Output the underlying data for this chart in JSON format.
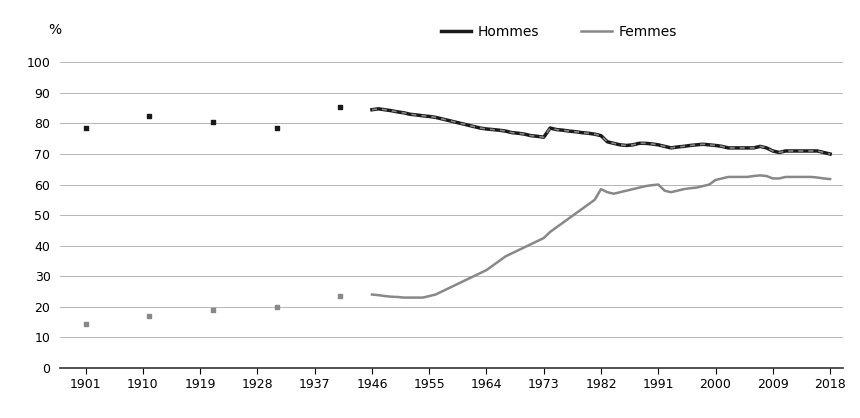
{
  "hommes_scatter_x": [
    1901,
    1911,
    1921,
    1931,
    1941
  ],
  "hommes_scatter_y": [
    78.5,
    82.5,
    80.5,
    78.5,
    85.5
  ],
  "femmes_scatter_x": [
    1901,
    1911,
    1921,
    1931,
    1941
  ],
  "femmes_scatter_y": [
    14.5,
    17.0,
    19.0,
    20.0,
    23.5
  ],
  "hommes_line_x": [
    1946,
    1947,
    1948,
    1949,
    1950,
    1951,
    1952,
    1953,
    1954,
    1955,
    1956,
    1957,
    1958,
    1959,
    1960,
    1961,
    1962,
    1963,
    1964,
    1965,
    1966,
    1967,
    1968,
    1969,
    1970,
    1971,
    1972,
    1973,
    1974,
    1975,
    1976,
    1977,
    1978,
    1979,
    1980,
    1981,
    1982,
    1983,
    1984,
    1985,
    1986,
    1987,
    1988,
    1989,
    1990,
    1991,
    1992,
    1993,
    1994,
    1995,
    1996,
    1997,
    1998,
    1999,
    2000,
    2001,
    2002,
    2003,
    2004,
    2005,
    2006,
    2007,
    2008,
    2009,
    2010,
    2011,
    2012,
    2013,
    2014,
    2015,
    2016,
    2017,
    2018
  ],
  "hommes_line_y": [
    84.5,
    84.8,
    84.5,
    84.2,
    83.8,
    83.5,
    83.0,
    82.8,
    82.5,
    82.3,
    82.0,
    81.5,
    81.0,
    80.5,
    80.0,
    79.5,
    79.0,
    78.5,
    78.2,
    78.0,
    77.8,
    77.5,
    77.0,
    76.8,
    76.5,
    76.0,
    75.8,
    75.5,
    78.5,
    78.0,
    77.8,
    77.5,
    77.3,
    77.0,
    76.8,
    76.5,
    76.0,
    74.0,
    73.5,
    73.0,
    72.8,
    73.0,
    73.5,
    73.5,
    73.3,
    73.0,
    72.5,
    72.0,
    72.3,
    72.5,
    72.8,
    73.0,
    73.2,
    73.0,
    72.8,
    72.5,
    72.0,
    72.0,
    72.0,
    72.0,
    72.0,
    72.5,
    72.0,
    71.0,
    70.5,
    71.0,
    71.0,
    71.0,
    71.0,
    71.0,
    71.0,
    70.5,
    70.0
  ],
  "femmes_line_x": [
    1946,
    1947,
    1948,
    1949,
    1950,
    1951,
    1952,
    1953,
    1954,
    1955,
    1956,
    1957,
    1958,
    1959,
    1960,
    1961,
    1962,
    1963,
    1964,
    1965,
    1966,
    1967,
    1968,
    1969,
    1970,
    1971,
    1972,
    1973,
    1974,
    1975,
    1976,
    1977,
    1978,
    1979,
    1980,
    1981,
    1982,
    1983,
    1984,
    1985,
    1986,
    1987,
    1988,
    1989,
    1990,
    1991,
    1992,
    1993,
    1994,
    1995,
    1996,
    1997,
    1998,
    1999,
    2000,
    2001,
    2002,
    2003,
    2004,
    2005,
    2006,
    2007,
    2008,
    2009,
    2010,
    2011,
    2012,
    2013,
    2014,
    2015,
    2016,
    2017,
    2018
  ],
  "femmes_line_y": [
    24.0,
    23.8,
    23.5,
    23.3,
    23.2,
    23.0,
    23.0,
    23.0,
    23.0,
    23.5,
    24.0,
    25.0,
    26.0,
    27.0,
    28.0,
    29.0,
    30.0,
    31.0,
    32.0,
    33.5,
    35.0,
    36.5,
    37.5,
    38.5,
    39.5,
    40.5,
    41.5,
    42.5,
    44.5,
    46.0,
    47.5,
    49.0,
    50.5,
    52.0,
    53.5,
    55.0,
    58.5,
    57.5,
    57.0,
    57.5,
    58.0,
    58.5,
    59.0,
    59.5,
    59.8,
    60.0,
    58.0,
    57.5,
    58.0,
    58.5,
    58.8,
    59.0,
    59.5,
    60.0,
    61.5,
    62.0,
    62.5,
    62.5,
    62.5,
    62.5,
    62.8,
    63.0,
    62.8,
    62.0,
    62.0,
    62.5,
    62.5,
    62.5,
    62.5,
    62.5,
    62.3,
    62.0,
    61.8
  ],
  "hommes_color": "#1a1a1a",
  "hommes_dash_color": "#888888",
  "femmes_color": "#888888",
  "scatter_size": 6,
  "xticks": [
    1901,
    1910,
    1919,
    1928,
    1937,
    1946,
    1955,
    1964,
    1973,
    1982,
    1991,
    2000,
    2009,
    2018
  ],
  "yticks": [
    0,
    10,
    20,
    30,
    40,
    50,
    60,
    70,
    80,
    90,
    100
  ],
  "xlim": [
    1897,
    2020
  ],
  "ylim": [
    0,
    104
  ],
  "ylabel": "%",
  "background_color": "#ffffff",
  "grid_color": "#aaaaaa",
  "legend_hommes": "Hommes",
  "legend_femmes": "Femmes"
}
